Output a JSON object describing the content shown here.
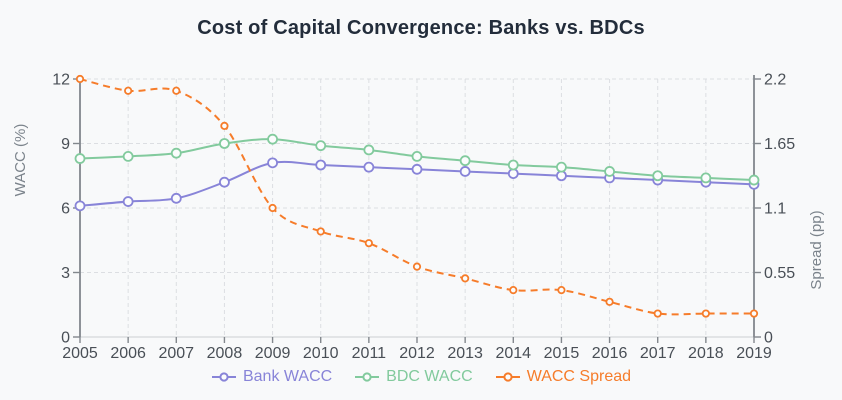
{
  "chart_data": {
    "type": "line",
    "title": "Cost of Capital Convergence: Banks vs. BDCs",
    "x": [
      2005,
      2006,
      2007,
      2008,
      2009,
      2010,
      2011,
      2012,
      2013,
      2014,
      2015,
      2016,
      2017,
      2018,
      2019
    ],
    "series": [
      {
        "name": "Bank WACC",
        "yaxis": "left",
        "color": "#8884d8",
        "style": "solid",
        "values": [
          6.1,
          6.3,
          6.45,
          7.2,
          8.1,
          8.0,
          7.9,
          7.8,
          7.7,
          7.6,
          7.5,
          7.4,
          7.3,
          7.2,
          7.1
        ]
      },
      {
        "name": "BDC WACC",
        "yaxis": "left",
        "color": "#82ca9d",
        "style": "solid",
        "values": [
          8.3,
          8.4,
          8.55,
          9.0,
          9.2,
          8.9,
          8.7,
          8.4,
          8.2,
          8.0,
          7.9,
          7.7,
          7.5,
          7.4,
          7.3
        ]
      },
      {
        "name": "WACC Spread",
        "yaxis": "right",
        "color": "#f67c2a",
        "style": "dashed",
        "values": [
          2.2,
          2.1,
          2.1,
          1.8,
          1.1,
          0.9,
          0.8,
          0.6,
          0.5,
          0.4,
          0.4,
          0.3,
          0.2,
          0.2,
          0.2
        ]
      }
    ],
    "left_axis": {
      "label": "WACC (%)",
      "range": [
        0,
        12
      ],
      "ticks": [
        "0",
        "3",
        "6",
        "9",
        "12"
      ]
    },
    "right_axis": {
      "label": "Spread (pp)",
      "range": [
        0,
        2.2
      ],
      "ticks": [
        "0",
        "0.55",
        "1.1",
        "1.65",
        "2.2"
      ]
    },
    "x_tick_labels": [
      "2005",
      "2006",
      "2007",
      "2008",
      "2009",
      "2010",
      "2011",
      "2012",
      "2013",
      "2014",
      "2015",
      "2016",
      "2017",
      "2018",
      "2019"
    ],
    "grid": true,
    "legend_position": "bottom",
    "colors": {
      "background": "#f8f9fa",
      "title": "#232d3b",
      "axis_line": "#82878d",
      "tick_label": "#494f56",
      "axis_name": "#7b838b",
      "gridline": "#dcdee2",
      "marker_fill": "#fbfcfd"
    }
  }
}
